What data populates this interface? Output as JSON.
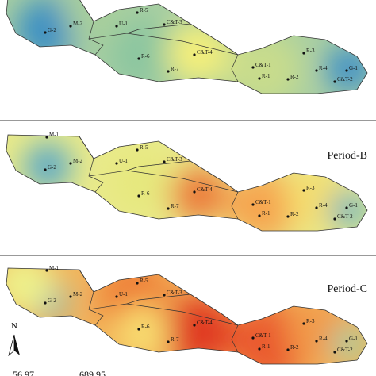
{
  "panels": [
    {
      "points": [
        "M-2",
        "G-2",
        "U-1",
        "R-5",
        "C&T-3",
        "R-6",
        "C&T-4",
        "R-7",
        "C&T-1",
        "R-3",
        "R-2",
        "R-1",
        "R-4",
        "G-1",
        "C&T-2"
      ]
    },
    {
      "title": "Period-B",
      "points": [
        "M-1",
        "M-2",
        "G-2",
        "U-1",
        "R-5",
        "C&T-3",
        "R-6",
        "C&T-4",
        "R-7",
        "C&T-1",
        "R-3",
        "R-2",
        "R-1",
        "R-4",
        "G-1",
        "C&T-2"
      ]
    },
    {
      "title": "Period-C",
      "points": [
        "M-1",
        "M-2",
        "G-2",
        "U-1",
        "R-5",
        "C&T-3",
        "R-6",
        "C&T-4",
        "R-7",
        "C&T-1",
        "R-3",
        "R-2",
        "R-1",
        "R-4",
        "G-1",
        "C&T-2"
      ]
    }
  ],
  "north": "N",
  "legend": {
    "min": "56.97",
    "max": "689.95"
  }
}
